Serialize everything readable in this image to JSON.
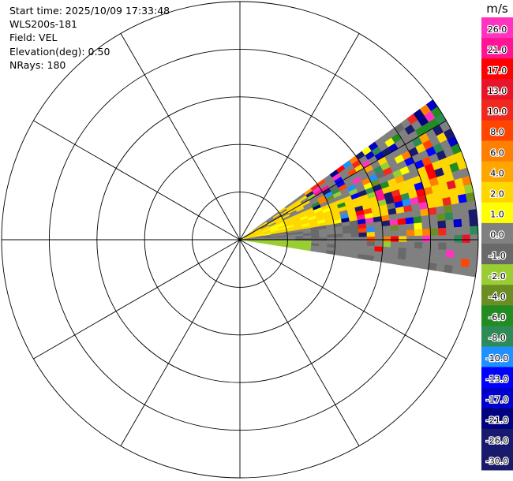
{
  "header": {
    "start_time": "Start time: 2025/10/09 17:33:48",
    "instrument": "WLS200s-181",
    "field": "Field: VEL",
    "elevation": "Elevation(deg): 0.50",
    "nrays": "NRays: 180"
  },
  "chart_data": {
    "type": "heatmap",
    "projection": "polar-ppi",
    "range_rings": 5,
    "spokes_deg": 30,
    "sector_azimuth_deg": [
      54,
      99
    ],
    "colorbar": {
      "unit": "m/s",
      "labels": [
        "26.0",
        "21.0",
        "17.0",
        "13.0",
        "10.0",
        "8.0",
        "6.0",
        "4.0",
        "2.0",
        "1.0",
        "0.0",
        "-1.0",
        "-2.0",
        "-4.0",
        "-6.0",
        "-8.0",
        "-10.0",
        "-13.0",
        "-17.0",
        "-21.0",
        "-26.0",
        "-30.0"
      ],
      "colors": [
        "#ff33c0",
        "#ff1493",
        "#ff0000",
        "#e8142a",
        "#f0281e",
        "#ff4500",
        "#ff7f00",
        "#ffa500",
        "#ffd700",
        "#ffff00",
        "#808080",
        "#696969",
        "#9acd32",
        "#6b8e23",
        "#228b22",
        "#2e8b57",
        "#1e90ff",
        "#0000ff",
        "#0000cd",
        "#000080",
        "#191970",
        "#1a1a6a"
      ]
    }
  }
}
